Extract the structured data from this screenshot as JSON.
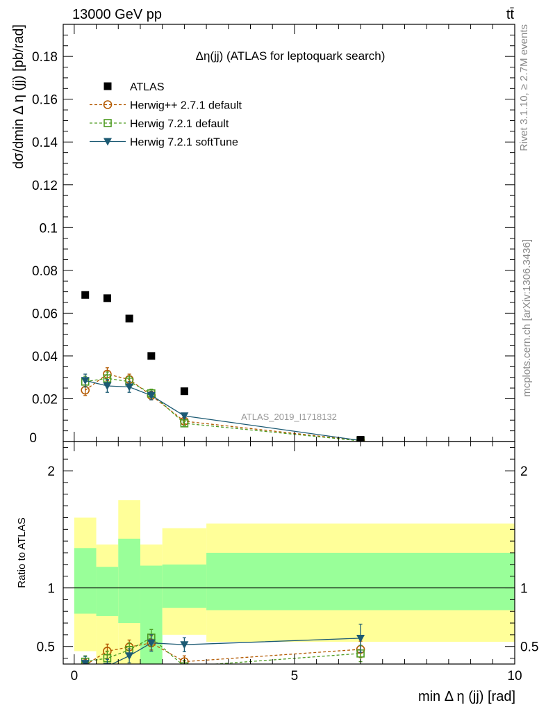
{
  "header": {
    "energy_label": "13000 GeV pp",
    "process_label": "tt̄"
  },
  "side_labels": {
    "rivet": "Rivet 3.1.10, ≥ 2.7M events",
    "mcplots": "mcplots.cern.ch [arXiv:1306.3436]"
  },
  "colors": {
    "atlas": "#000000",
    "herwigpp": "#b35900",
    "herwig721": "#4c9a1f",
    "softtune": "#1c5a73",
    "band_yellow": "#ffff99",
    "band_green": "#99ff99"
  },
  "chart_data": [
    {
      "type": "scatter",
      "title": "Δη(jj) (ATLAS for leptoquark search)",
      "xlabel": "min Δ η (jj) [rad]",
      "ylabel": "dσ/dmin Δ η (jj) [pb/rad]",
      "watermark": "ATLAS_2019_I1718132",
      "xlim": [
        -0.25,
        10
      ],
      "ylim": [
        0,
        0.195
      ],
      "x_ticks": [
        0,
        5,
        10
      ],
      "y_ticks": [
        0.02,
        0.04,
        0.06,
        0.08,
        0.1,
        0.12,
        0.14,
        0.16,
        0.18
      ],
      "y_tick_labels": [
        "0.02",
        "0.04",
        "0.06",
        "0.08",
        "0.1",
        "0.12",
        "0.14",
        "0.16",
        "0.18"
      ],
      "y_zero_label": "0",
      "legend_position": "top-left",
      "series": [
        {
          "name": "ATLAS",
          "style": "square",
          "x": [
            0.25,
            0.75,
            1.25,
            1.75,
            2.5,
            6.5
          ],
          "y": [
            0.0685,
            0.067,
            0.0575,
            0.04,
            0.0235,
            0.0008
          ]
        },
        {
          "name": "Herwig++ 2.7.1 default",
          "style": "circle-dashed",
          "x": [
            0.25,
            0.75,
            1.25,
            1.75,
            2.5,
            6.5
          ],
          "y": [
            0.024,
            0.0315,
            0.029,
            0.0215,
            0.0095,
            0.0004
          ],
          "err": [
            0.0025,
            0.003,
            0.0025,
            0.002,
            0.001,
            0.0001
          ]
        },
        {
          "name": "Herwig 7.2.1 default",
          "style": "square-dashed",
          "x": [
            0.25,
            0.75,
            1.25,
            1.75,
            2.5,
            6.5
          ],
          "y": [
            0.028,
            0.0295,
            0.028,
            0.0225,
            0.0085,
            0.0003
          ],
          "err": [
            0.0025,
            0.003,
            0.0025,
            0.002,
            0.001,
            0.0001
          ]
        },
        {
          "name": "Herwig 7.2.1 softTune",
          "style": "triangle-solid",
          "x": [
            0.25,
            0.75,
            1.25,
            1.75,
            2.5,
            6.5
          ],
          "y": [
            0.0285,
            0.026,
            0.0255,
            0.0215,
            0.012,
            0.0005
          ],
          "err": [
            0.003,
            0.003,
            0.0025,
            0.002,
            0.001,
            0.0001
          ]
        }
      ]
    },
    {
      "type": "scatter",
      "ylabel": "Ratio to ATLAS",
      "xlabel": "min Δ η (jj) [rad]",
      "xlim": [
        -0.25,
        10
      ],
      "ylim": [
        0.35,
        2.25
      ],
      "x_ticks": [
        0,
        5,
        10
      ],
      "y_ticks": [
        0.5,
        1,
        2
      ],
      "y_tick_labels": [
        "0.5",
        "1",
        "2"
      ],
      "bins": [
        [
          0,
          0.5
        ],
        [
          0.5,
          1.0
        ],
        [
          1.0,
          1.5
        ],
        [
          1.5,
          2.0
        ],
        [
          2.0,
          3.0
        ],
        [
          3.0,
          10.0
        ]
      ],
      "band_yellow": [
        [
          0.46,
          1.6
        ],
        [
          0.35,
          1.37
        ],
        [
          0.35,
          1.75
        ],
        [
          0.35,
          1.37
        ],
        [
          0.6,
          1.51
        ],
        [
          0.54,
          1.55
        ]
      ],
      "band_green": [
        [
          0.78,
          1.34
        ],
        [
          0.76,
          1.18
        ],
        [
          0.7,
          1.42
        ],
        [
          0.35,
          1.19
        ],
        [
          0.83,
          1.2
        ],
        [
          0.81,
          1.3
        ]
      ],
      "series": [
        {
          "name": "Herwig++ 2.7.1 default",
          "style": "circle-dashed",
          "x": [
            0.25,
            0.75,
            1.25,
            1.75,
            2.5,
            6.5
          ],
          "y": [
            0.34,
            0.46,
            0.495,
            0.53,
            0.37,
            0.475
          ],
          "err": [
            0.05,
            0.06,
            0.06,
            0.06,
            0.05,
            0.07
          ]
        },
        {
          "name": "Herwig 7.2.1 default",
          "style": "square-dashed",
          "x": [
            0.25,
            0.75,
            1.25,
            1.75,
            2.5,
            6.5
          ],
          "y": [
            0.37,
            0.4,
            0.47,
            0.575,
            0.33,
            0.44
          ],
          "err": [
            0.05,
            0.06,
            0.06,
            0.07,
            0.05,
            0.07
          ]
        },
        {
          "name": "Herwig 7.2.1 softTune",
          "style": "triangle-solid",
          "x": [
            0.25,
            0.75,
            1.25,
            1.75,
            2.5,
            6.5
          ],
          "y": [
            0.355,
            0.33,
            0.42,
            0.53,
            0.515,
            0.57
          ],
          "err": [
            0.06,
            0.06,
            0.06,
            0.07,
            0.06,
            0.12
          ]
        }
      ]
    }
  ]
}
